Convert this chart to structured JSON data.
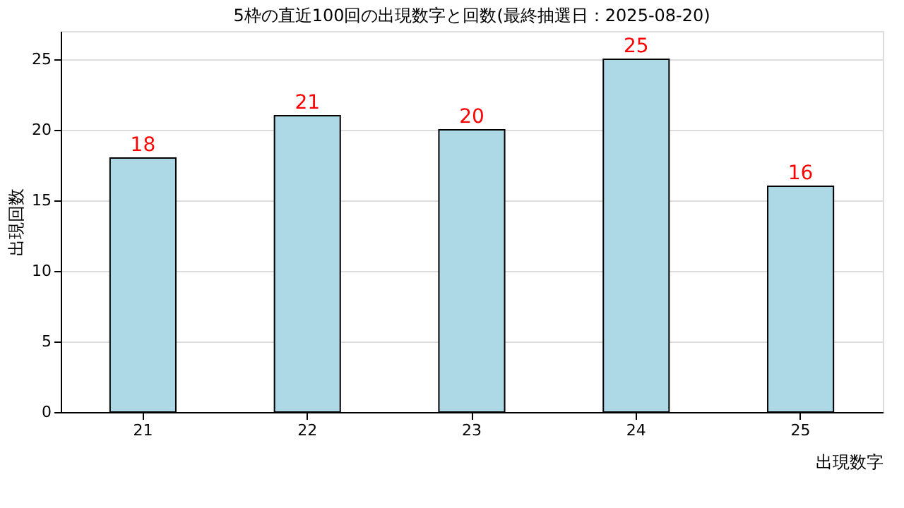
{
  "chart_data": {
    "type": "bar",
    "title": "5枠の直近100回の出現数字と回数(最終抽選日：2025-08-20)",
    "xlabel": "出現数字",
    "ylabel": "出現回数",
    "categories": [
      "21",
      "22",
      "23",
      "24",
      "25"
    ],
    "values": [
      18,
      21,
      20,
      25,
      16
    ],
    "color": "#add8e6",
    "ylim": [
      0,
      27
    ],
    "yticks": [
      0,
      5,
      10,
      15,
      20,
      25
    ],
    "grid": "y",
    "data_labels": true
  }
}
